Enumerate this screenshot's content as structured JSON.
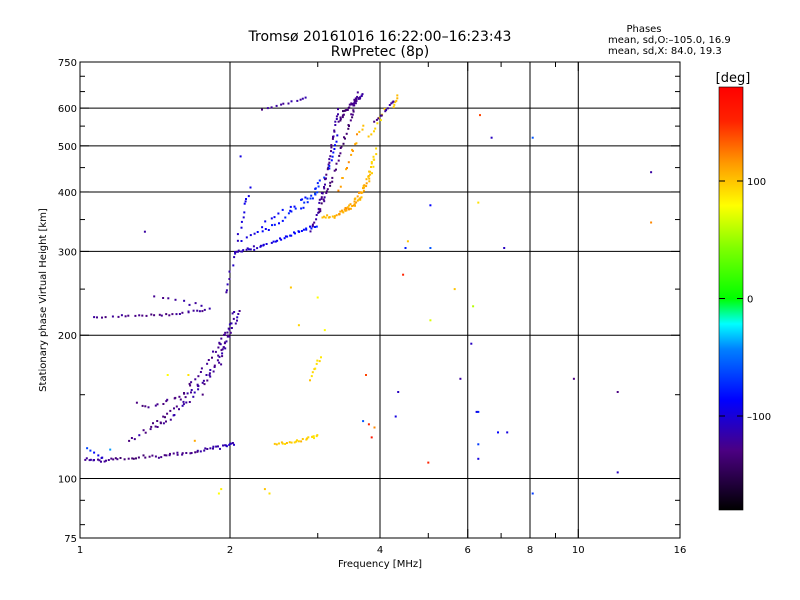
{
  "chart_data": {
    "type": "scatter",
    "title": "Tromsø 20161016 16:22:00–16:23:43",
    "subtitle": "RwPretec (8p)",
    "legend_box": {
      "heading": "Phases",
      "line1": "mean, sd,O:–105.0, 16.9",
      "line2": "mean, sd,X:  84.0, 19.3"
    },
    "xlabel": "Frequency [MHz]",
    "ylabel": "Stationary phase Virtual Height [km]",
    "x_scale": "log",
    "y_scale": "log",
    "xlim": [
      1,
      16
    ],
    "ylim": [
      75,
      750
    ],
    "x_ticks": [
      1,
      2,
      4,
      6,
      8,
      10,
      16
    ],
    "x_tick_labels": [
      "1",
      "2",
      "4",
      "6",
      "8",
      "10",
      "16"
    ],
    "x_grid": [
      2,
      4,
      6,
      8,
      10
    ],
    "y_ticks": [
      75,
      100,
      200,
      300,
      400,
      500,
      600,
      750
    ],
    "y_tick_labels": [
      "75",
      "100",
      "200",
      "300",
      "400",
      "500",
      "600",
      "750"
    ],
    "y_grid": [
      100,
      200,
      300,
      400,
      500,
      600
    ],
    "grid": true,
    "colorbar": {
      "label": "[deg]",
      "min": -180,
      "max": 180,
      "ticks": [
        100,
        0,
        -100
      ],
      "tick_labels": [
        "100",
        "0",
        "–100"
      ]
    },
    "series": [
      {
        "traces": [
          {
            "x": [
              1.02,
              1.1,
              1.2,
              1.35,
              1.5,
              1.65,
              1.8,
              1.95,
              2.05
            ],
            "y": [
              110,
              109,
              110,
              111,
              112,
              113,
              115,
              117,
              118
            ],
            "phase": [
              -120,
              -125,
              -130,
              -135,
              -125,
              -130,
              -120,
              -115,
              -110
            ],
            "points_per_step": 8,
            "jitter": [
              0.006,
              0.012
            ]
          },
          {
            "x": [
              1.03,
              1.08,
              1.12
            ],
            "y": [
              116,
              112,
              110
            ],
            "phase": [
              -70,
              -90,
              -110
            ],
            "points_per_step": 3,
            "jitter": [
              0.006,
              0.01
            ]
          },
          {
            "x": [
              1.25,
              1.35,
              1.45,
              1.55,
              1.65,
              1.75
            ],
            "y": [
              120,
              125,
              130,
              136,
              145,
              160
            ],
            "phase": [
              -125,
              -125,
              -130,
              -125,
              -120,
              -120
            ],
            "points_per_step": 5,
            "jitter": [
              0.01,
              0.02
            ]
          },
          {
            "x": [
              1.4,
              1.5,
              1.6,
              1.7,
              1.8,
              1.9,
              1.95,
              2.0
            ],
            "y": [
              130,
              136,
              145,
              155,
              165,
              175,
              190,
              200
            ],
            "phase": [
              -130,
              -130,
              -125,
              -125,
              -120,
              -120,
              -120,
              -120
            ],
            "points_per_step": 5,
            "jitter": [
              0.012,
              0.02
            ]
          },
          {
            "x": [
              1.6,
              1.7,
              1.8,
              1.9,
              1.95,
              2.0,
              2.05
            ],
            "y": [
              150,
              162,
              176,
              190,
              200,
              210,
              225
            ],
            "phase": [
              -130,
              -130,
              -125,
              -125,
              -120,
              -120,
              -115
            ],
            "points_per_step": 5,
            "jitter": [
              0.012,
              0.02
            ]
          },
          {
            "x": [
              1.3,
              1.4,
              1.5,
              1.6
            ],
            "y": [
              145,
              140,
              146,
              150
            ],
            "phase": [
              -130,
              -130,
              -130,
              -125
            ],
            "points_per_step": 4,
            "jitter": [
              0.015,
              0.02
            ]
          },
          {
            "x": [
              1.75,
              1.85,
              1.95,
              2.05,
              2.1
            ],
            "y": [
              150,
              170,
              190,
              210,
              230
            ],
            "phase": [
              -130,
              -125,
              -125,
              -120,
              -120
            ],
            "points_per_step": 5,
            "jitter": [
              0.01,
              0.02
            ]
          },
          {
            "x": [
              1.05,
              1.2,
              1.35,
              1.5,
              1.65,
              1.8
            ],
            "y": [
              218,
              219,
              220,
              221,
              224,
              226
            ],
            "phase": [
              -130,
              -125,
              -130,
              -130,
              -125,
              -125
            ],
            "points_per_step": 6,
            "jitter": [
              0.008,
              0.01
            ]
          },
          {
            "x": [
              1.4,
              1.55,
              1.7,
              1.82
            ],
            "y": [
              240,
              238,
              232,
              228
            ],
            "phase": [
              -125,
              -125,
              -120,
              -120
            ],
            "points_per_step": 3,
            "jitter": [
              0.015,
              0.015
            ]
          },
          {
            "x": [
              1.95,
              2.0,
              2.05,
              2.1,
              2.15,
              2.2
            ],
            "y": [
              240,
              270,
              300,
              340,
              380,
              405
            ],
            "phase": [
              -120,
              -115,
              -110,
              -105,
              -100,
              -95
            ],
            "points_per_step": 4,
            "jitter": [
              0.01,
              0.02
            ]
          },
          {
            "x": [
              2.05,
              2.15,
              2.25,
              2.4,
              2.55,
              2.7,
              2.85,
              3.0
            ],
            "y": [
              300,
              302,
              305,
              312,
              320,
              328,
              335,
              340
            ],
            "phase": [
              -115,
              -110,
              -110,
              -100,
              -95,
              -90,
              -90,
              -85
            ],
            "points_per_step": 6,
            "jitter": [
              0.01,
              0.012
            ]
          },
          {
            "x": [
              2.1,
              2.3,
              2.5,
              2.7,
              2.9,
              3.0
            ],
            "y": [
              315,
              330,
              345,
              365,
              385,
              405
            ],
            "phase": [
              -100,
              -95,
              -85,
              -80,
              -75,
              -70
            ],
            "points_per_step": 5,
            "jitter": [
              0.015,
              0.015
            ]
          },
          {
            "x": [
              2.3,
              2.5,
              2.7,
              2.85,
              3.0,
              3.1
            ],
            "y": [
              340,
              360,
              375,
              390,
              410,
              430
            ],
            "phase": [
              -95,
              -90,
              -85,
              -80,
              -80,
              -75
            ],
            "points_per_step": 4,
            "jitter": [
              0.018,
              0.018
            ]
          },
          {
            "x": [
              2.9,
              3.0,
              3.05,
              3.1,
              3.15,
              3.2,
              3.25,
              3.3
            ],
            "y": [
              330,
              360,
              390,
              420,
              450,
              500,
              550,
              600
            ],
            "phase": [
              -120,
              -120,
              -125,
              -125,
              -130,
              -130,
              -125,
              -120
            ],
            "points_per_step": 6,
            "jitter": [
              0.006,
              0.012
            ]
          },
          {
            "x": [
              3.0,
              3.1,
              3.2,
              3.3,
              3.4,
              3.5,
              3.55,
              3.6
            ],
            "y": [
              360,
              390,
              420,
              470,
              520,
              570,
              610,
              650
            ],
            "phase": [
              -130,
              -130,
              -135,
              -135,
              -140,
              -135,
              -130,
              -125
            ],
            "points_per_step": 6,
            "jitter": [
              0.008,
              0.012
            ]
          },
          {
            "x": [
              3.3,
              3.4,
              3.5,
              3.6,
              3.7
            ],
            "y": [
              560,
              590,
              610,
              625,
              640
            ],
            "phase": [
              -135,
              -135,
              -130,
              -125,
              -120
            ],
            "points_per_step": 8,
            "jitter": [
              0.01,
              0.012
            ]
          },
          {
            "x": [
              3.15,
              3.2,
              3.25,
              3.3
            ],
            "y": [
              440,
              470,
              500,
              540
            ],
            "phase": [
              -80,
              -85,
              -90,
              -100
            ],
            "points_per_step": 3,
            "jitter": [
              0.008,
              0.012
            ]
          },
          {
            "x": [
              3.05,
              3.2,
              3.35,
              3.5,
              3.6,
              3.7,
              3.8,
              3.9
            ],
            "y": [
              355,
              355,
              360,
              370,
              380,
              400,
              440,
              480
            ],
            "phase": [
              100,
              105,
              110,
              110,
              108,
              105,
              100,
              95
            ],
            "points_per_step": 6,
            "jitter": [
              0.008,
              0.012
            ]
          },
          {
            "x": [
              3.3,
              3.45,
              3.6,
              3.75,
              3.85,
              3.95
            ],
            "y": [
              360,
              370,
              390,
              410,
              440,
              500
            ],
            "phase": [
              115,
              112,
              110,
              105,
              100,
              95
            ],
            "points_per_step": 6,
            "jitter": [
              0.01,
              0.012
            ]
          },
          {
            "x": [
              3.3,
              3.4,
              3.5,
              3.6,
              3.7
            ],
            "y": [
              400,
              440,
              480,
              520,
              560
            ],
            "phase": [
              118,
              115,
              112,
              110,
              105
            ],
            "points_per_step": 4,
            "jitter": [
              0.01,
              0.015
            ]
          },
          {
            "x": [
              3.8,
              3.9,
              4.0,
              4.1
            ],
            "y": [
              520,
              540,
              570,
              600
            ],
            "phase": [
              100,
              95,
              95,
              90
            ],
            "points_per_step": 3,
            "jitter": [
              0.01,
              0.012
            ]
          },
          {
            "x": [
              4.25,
              4.3,
              4.35
            ],
            "y": [
              600,
              620,
              640
            ],
            "phase": [
              100,
              100,
              98
            ],
            "points_per_step": 3,
            "jitter": [
              0.006,
              0.01
            ]
          },
          {
            "x": [
              3.9,
              4.0,
              4.1,
              4.2,
              4.3
            ],
            "y": [
              560,
              575,
              590,
              610,
              625
            ],
            "phase": [
              -130,
              -125,
              -120,
              -120,
              -125
            ],
            "points_per_step": 3,
            "jitter": [
              0.01,
              0.012
            ]
          },
          {
            "x": [
              2.45,
              2.6,
              2.75,
              2.9,
              3.0
            ],
            "y": [
              118,
              119,
              120,
              122,
              123
            ],
            "phase": [
              100,
              95,
              100,
              95,
              90
            ],
            "points_per_step": 6,
            "jitter": [
              0.008,
              0.01
            ]
          },
          {
            "x": [
              2.9,
              2.95,
              3.0,
              3.05
            ],
            "y": [
              160,
              168,
              175,
              180
            ],
            "phase": [
              100,
              95,
              95,
              90
            ],
            "points_per_step": 3,
            "jitter": [
              0.006,
              0.012
            ]
          },
          {
            "x": [
              2.3,
              2.45,
              2.6,
              2.75,
              2.85
            ],
            "y": [
              595,
              605,
              615,
              625,
              635
            ],
            "phase": [
              -125,
              -125,
              -120,
              -120,
              -115
            ],
            "points_per_step": 3,
            "jitter": [
              0.006,
              0.008
            ]
          }
        ]
      }
    ],
    "scattered_points": [
      {
        "x": 1.9,
        "y": 93,
        "phase": 80
      },
      {
        "x": 1.92,
        "y": 95,
        "phase": 85
      },
      {
        "x": 2.4,
        "y": 93,
        "phase": 90
      },
      {
        "x": 2.35,
        "y": 95,
        "phase": 100
      },
      {
        "x": 3.75,
        "y": 165,
        "phase": 140
      },
      {
        "x": 3.8,
        "y": 130,
        "phase": 150
      },
      {
        "x": 3.85,
        "y": 122,
        "phase": 160
      },
      {
        "x": 3.9,
        "y": 128,
        "phase": 120
      },
      {
        "x": 3.7,
        "y": 132,
        "phase": -60
      },
      {
        "x": 4.3,
        "y": 135,
        "phase": -100
      },
      {
        "x": 4.35,
        "y": 152,
        "phase": -110
      },
      {
        "x": 4.45,
        "y": 268,
        "phase": 150
      },
      {
        "x": 4.5,
        "y": 305,
        "phase": -80
      },
      {
        "x": 4.55,
        "y": 315,
        "phase": 100
      },
      {
        "x": 5.0,
        "y": 108,
        "phase": 150
      },
      {
        "x": 5.05,
        "y": 215,
        "phase": 70
      },
      {
        "x": 5.05,
        "y": 375,
        "phase": -90
      },
      {
        "x": 5.05,
        "y": 305,
        "phase": -60
      },
      {
        "x": 5.65,
        "y": 250,
        "phase": 100
      },
      {
        "x": 5.8,
        "y": 162,
        "phase": -120
      },
      {
        "x": 6.1,
        "y": 192,
        "phase": -110
      },
      {
        "x": 6.15,
        "y": 230,
        "phase": 60
      },
      {
        "x": 6.25,
        "y": 138,
        "phase": -100
      },
      {
        "x": 6.3,
        "y": 138,
        "phase": -80
      },
      {
        "x": 6.3,
        "y": 380,
        "phase": 90
      },
      {
        "x": 6.35,
        "y": 580,
        "phase": 140
      },
      {
        "x": 6.3,
        "y": 118,
        "phase": -70
      },
      {
        "x": 6.3,
        "y": 110,
        "phase": -100
      },
      {
        "x": 6.7,
        "y": 520,
        "phase": -110
      },
      {
        "x": 6.9,
        "y": 125,
        "phase": -90
      },
      {
        "x": 7.1,
        "y": 305,
        "phase": -110
      },
      {
        "x": 7.2,
        "y": 125,
        "phase": -100
      },
      {
        "x": 8.1,
        "y": 520,
        "phase": -60
      },
      {
        "x": 8.1,
        "y": 93,
        "phase": -70
      },
      {
        "x": 9.8,
        "y": 162,
        "phase": -130
      },
      {
        "x": 12.0,
        "y": 152,
        "phase": -130
      },
      {
        "x": 12.0,
        "y": 103,
        "phase": -110
      },
      {
        "x": 14.0,
        "y": 440,
        "phase": -120
      },
      {
        "x": 14.0,
        "y": 345,
        "phase": 120
      },
      {
        "x": 1.7,
        "y": 120,
        "phase": 110
      },
      {
        "x": 1.65,
        "y": 165,
        "phase": 90
      },
      {
        "x": 1.5,
        "y": 165,
        "phase": 80
      },
      {
        "x": 1.35,
        "y": 330,
        "phase": -120
      },
      {
        "x": 1.15,
        "y": 115,
        "phase": -40
      },
      {
        "x": 2.65,
        "y": 252,
        "phase": 100
      },
      {
        "x": 2.75,
        "y": 210,
        "phase": 95
      },
      {
        "x": 3.0,
        "y": 240,
        "phase": 80
      },
      {
        "x": 3.1,
        "y": 205,
        "phase": 80
      },
      {
        "x": 2.1,
        "y": 475,
        "phase": -100
      }
    ]
  }
}
